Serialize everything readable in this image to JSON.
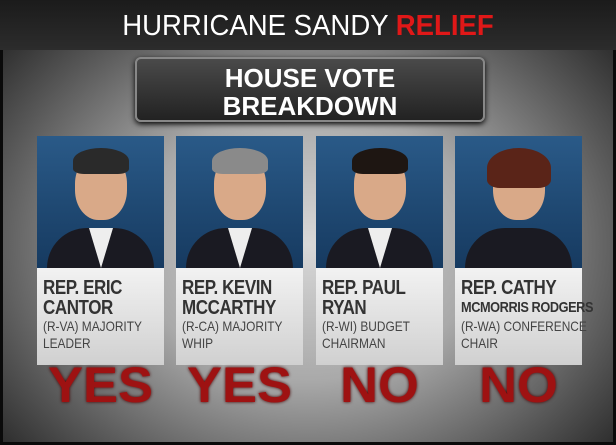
{
  "header": {
    "title": "HURRICANE SANDY",
    "title_highlight": "RELIEF",
    "subtitle_line1": "HOUSE VOTE",
    "subtitle_line2": "BREAKDOWN"
  },
  "colors": {
    "accent": "#e01818",
    "vote": "#9e1212",
    "photo_bg": "#1f4a75"
  },
  "members": [
    {
      "name1": "REP. ERIC",
      "name2": "CANTOR",
      "role1": "(R-VA) MAJORITY",
      "role2": "LEADER",
      "vote": "YES"
    },
    {
      "name1": "REP. KEVIN",
      "name2": "MCCARTHY",
      "role1": "(R-CA) MAJORITY",
      "role2": "WHIP",
      "vote": "YES"
    },
    {
      "name1": "REP.  PAUL",
      "name2": "RYAN",
      "role1": "(R-WI) BUDGET",
      "role2": "CHAIRMAN",
      "vote": "NO"
    },
    {
      "name1": "REP. CATHY",
      "name2": "MCMORRIS RODGERS",
      "role1": "(R-WA) CONFERENCE",
      "role2": "CHAIR",
      "vote": "NO"
    }
  ]
}
